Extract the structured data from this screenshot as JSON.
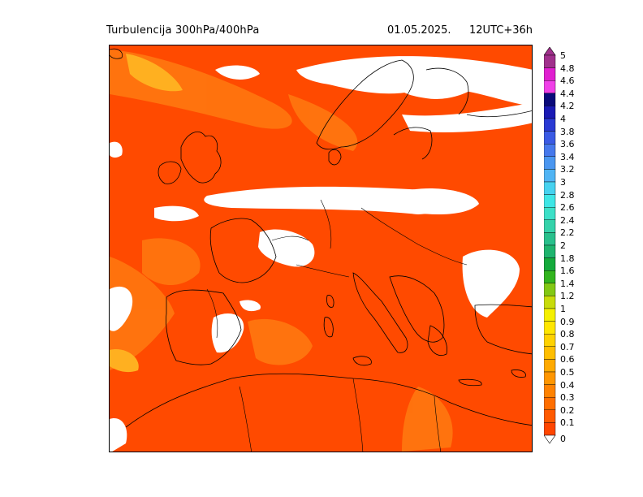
{
  "header": {
    "title": "Turbulencija 300hPa/400hPa",
    "date": "01.05.2025.",
    "run": "12UTC+36h"
  },
  "legend": {
    "levels": [
      {
        "label": "5",
        "color": "#a0308c"
      },
      {
        "label": "4.8",
        "color": "#e01fd0"
      },
      {
        "label": "4.6",
        "color": "#f040e8"
      },
      {
        "label": "4.4",
        "color": "#0a0a7a"
      },
      {
        "label": "4.2",
        "color": "#1a1ab4"
      },
      {
        "label": "4",
        "color": "#2a3ad4"
      },
      {
        "label": "3.8",
        "color": "#3a5ae4"
      },
      {
        "label": "3.6",
        "color": "#4678ec"
      },
      {
        "label": "3.4",
        "color": "#4a96f0"
      },
      {
        "label": "3.2",
        "color": "#50b4f4"
      },
      {
        "label": "3",
        "color": "#46d2f0"
      },
      {
        "label": "2.8",
        "color": "#3ee6e6"
      },
      {
        "label": "2.6",
        "color": "#3ce0c8"
      },
      {
        "label": "2.4",
        "color": "#34d2aa"
      },
      {
        "label": "2.2",
        "color": "#28c08c"
      },
      {
        "label": "2",
        "color": "#1eb46e"
      },
      {
        "label": "1.8",
        "color": "#14aa3c"
      },
      {
        "label": "1.6",
        "color": "#32b41e"
      },
      {
        "label": "1.4",
        "color": "#82c814"
      },
      {
        "label": "1.2",
        "color": "#c8dc0a"
      },
      {
        "label": "1",
        "color": "#f5f000"
      },
      {
        "label": "0.9",
        "color": "#ffe600"
      },
      {
        "label": "0.8",
        "color": "#ffd200"
      },
      {
        "label": "0.7",
        "color": "#ffbe00"
      },
      {
        "label": "0.6",
        "color": "#ffaa00"
      },
      {
        "label": "0.5",
        "color": "#ff9600"
      },
      {
        "label": "0.4",
        "color": "#ff8200"
      },
      {
        "label": "0.3",
        "color": "#ff6e00"
      },
      {
        "label": "0.2",
        "color": "#ff5a00"
      },
      {
        "label": "0.1",
        "color": "#ff4600"
      },
      {
        "label": "0",
        "color": "#ffffff"
      }
    ]
  },
  "map": {
    "region": "Europe and Mediterranean",
    "background_color": "#ff4a00",
    "no_data_color": "#ffffff",
    "moderate_color": "#ff8a1a",
    "high_color": "#ffc024"
  }
}
